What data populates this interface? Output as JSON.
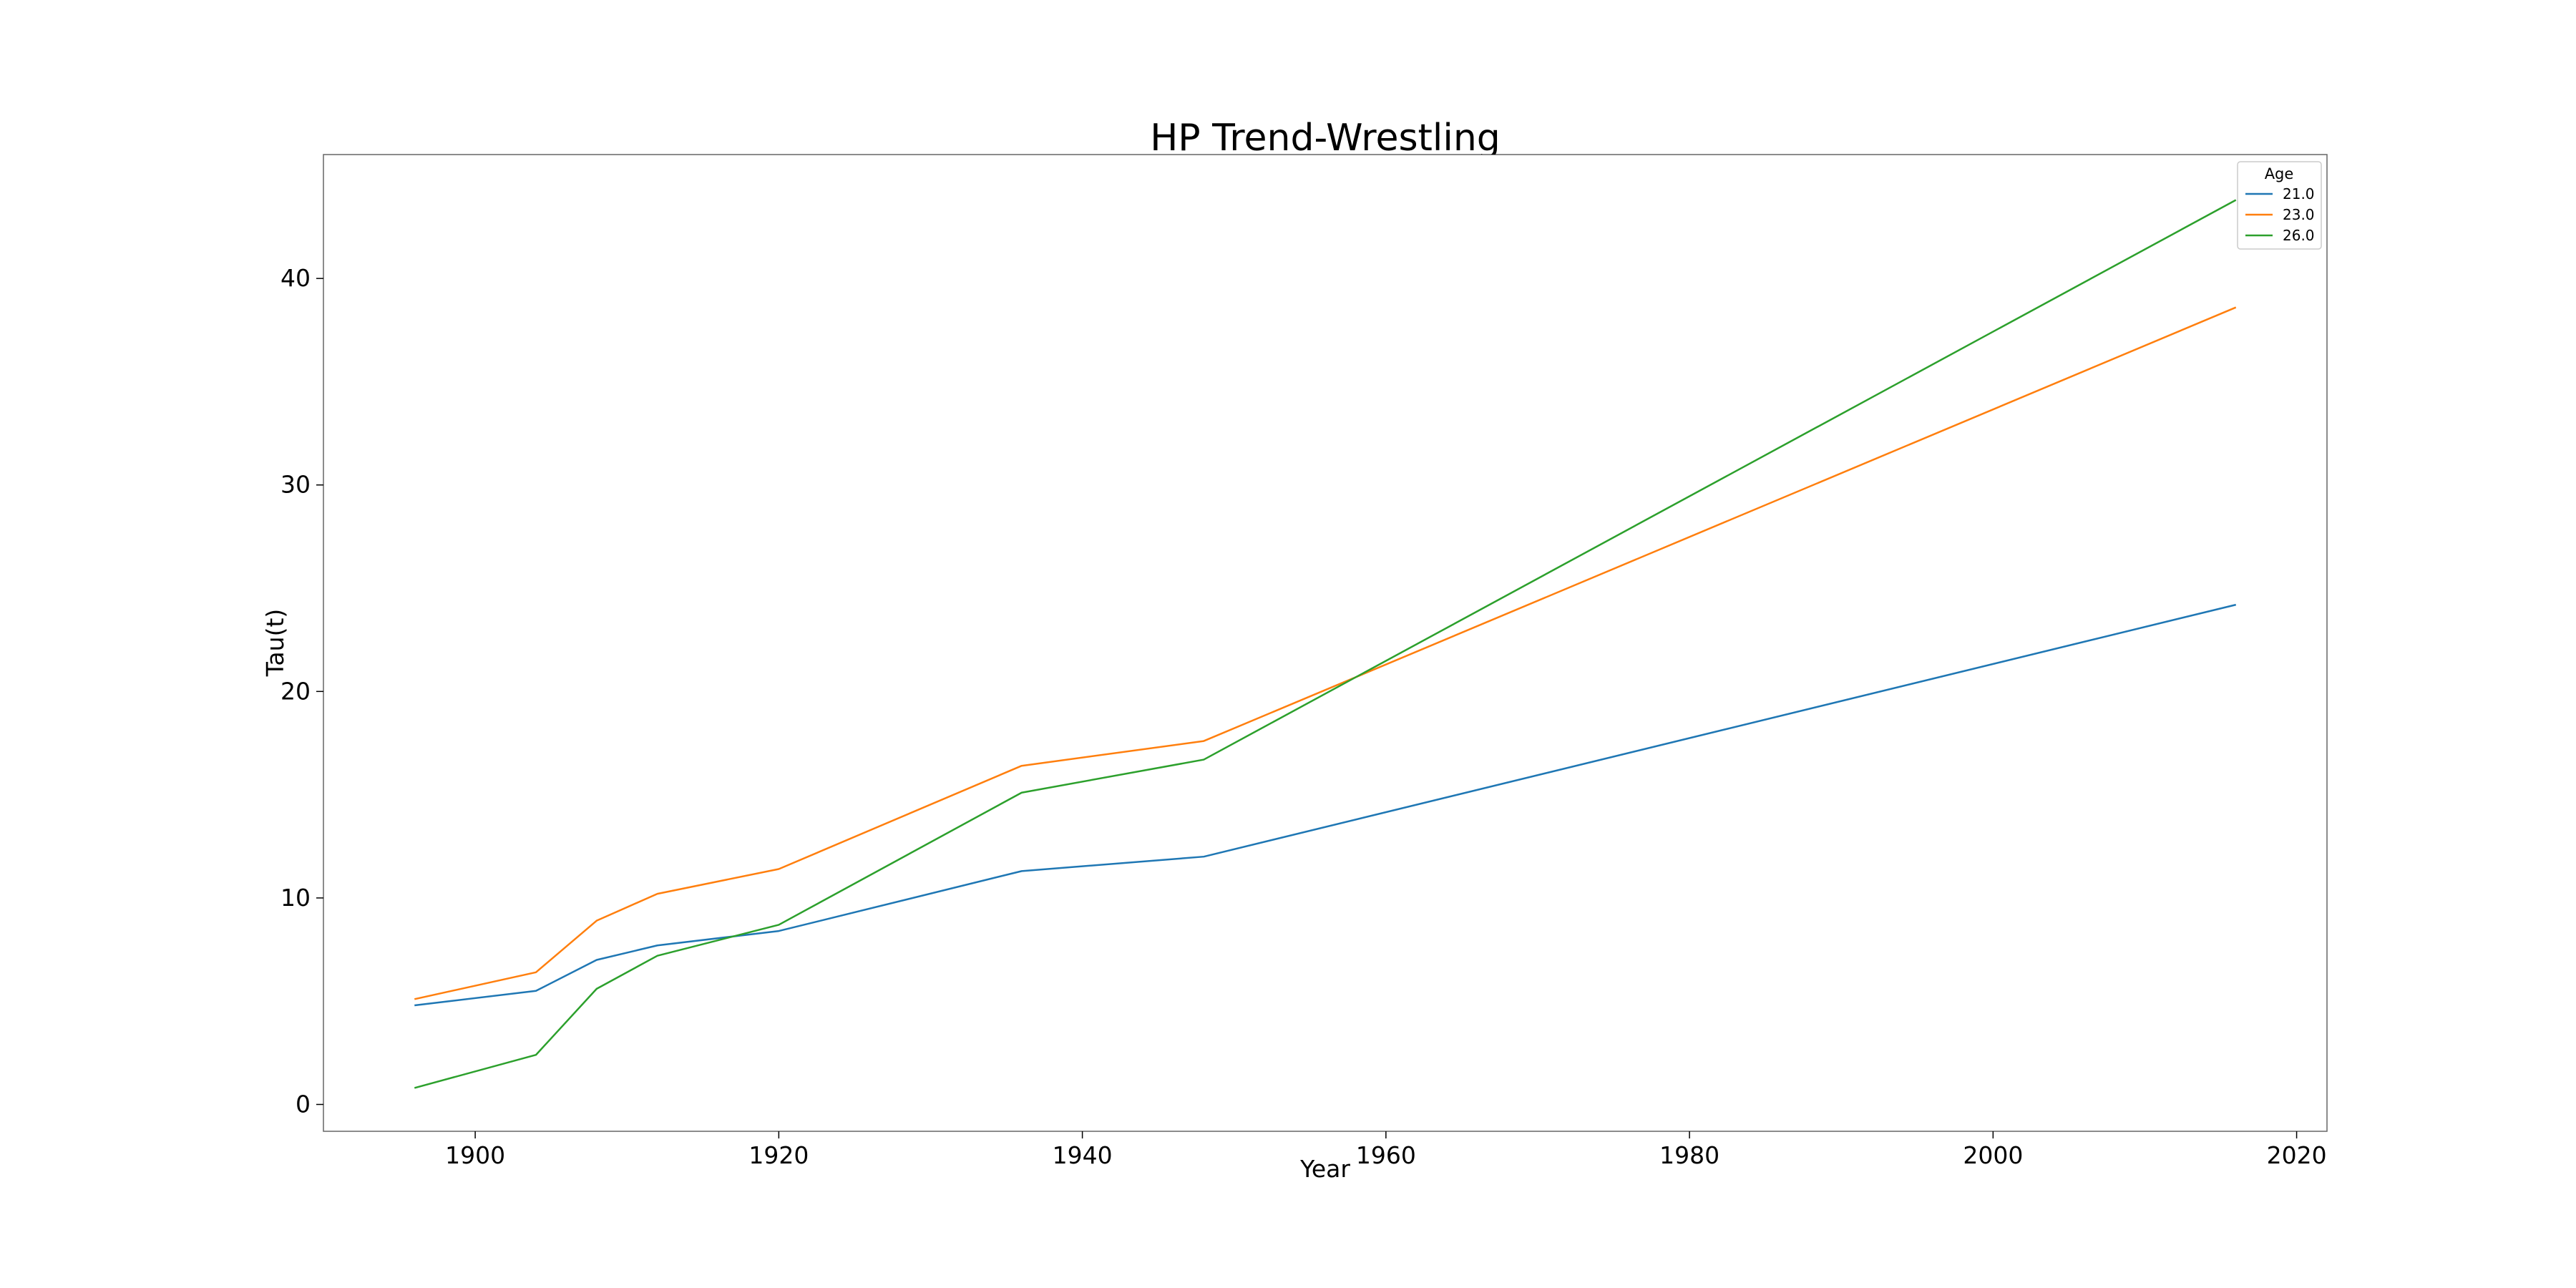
{
  "chart_data": {
    "type": "line",
    "title": "HP Trend-Wrestling",
    "xlabel": "Year",
    "ylabel": "Tau(t)",
    "x": [
      1896,
      1904,
      1908,
      1912,
      1920,
      1936,
      1948,
      2016
    ],
    "series": [
      {
        "name": "21.0",
        "color": "#1f77b4",
        "values": [
          4.8,
          5.5,
          7.0,
          7.7,
          8.4,
          11.3,
          12.0,
          24.2
        ]
      },
      {
        "name": "23.0",
        "color": "#ff7f0e",
        "values": [
          5.1,
          6.4,
          8.9,
          10.2,
          11.4,
          16.4,
          17.6,
          38.6
        ]
      },
      {
        "name": "26.0",
        "color": "#2ca02c",
        "values": [
          0.8,
          2.4,
          5.6,
          7.2,
          8.7,
          15.1,
          16.7,
          43.8
        ]
      }
    ],
    "xlim": [
      1890,
      2022
    ],
    "ylim": [
      -1.3,
      46.0
    ],
    "xticks": [
      1900,
      1920,
      1940,
      1960,
      1980,
      2000,
      2020
    ],
    "yticks": [
      0,
      10,
      20,
      30,
      40
    ],
    "grid": false,
    "legend": {
      "title": "Age",
      "position": "top-right"
    }
  }
}
